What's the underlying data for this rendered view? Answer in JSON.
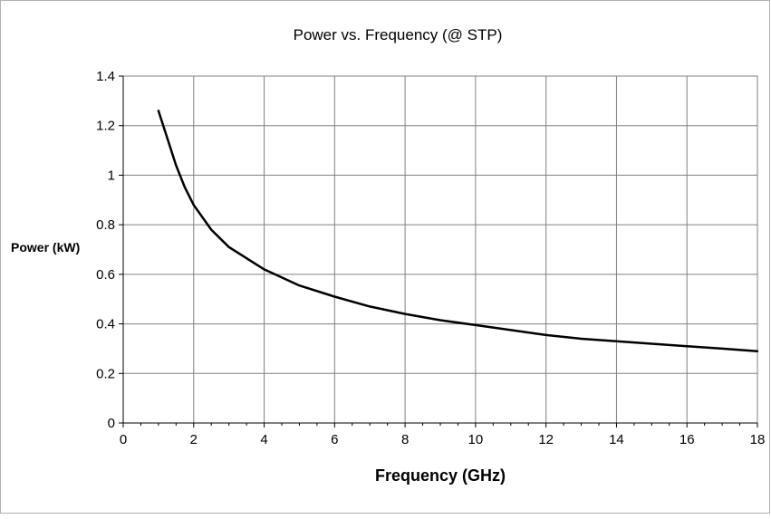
{
  "chart_data": {
    "type": "line",
    "title": "Power vs. Frequency (@ STP)",
    "xlabel": "Frequency (GHz)",
    "ylabel": "Power (kW)",
    "xlim": [
      0,
      18
    ],
    "ylim": [
      0,
      1.4
    ],
    "x_ticks": [
      0,
      2,
      4,
      6,
      8,
      10,
      12,
      14,
      16,
      18
    ],
    "y_ticks": [
      0,
      0.2,
      0.4,
      0.6,
      0.8,
      1,
      1.2,
      1.4
    ],
    "x_tick_labels": [
      "0",
      "2",
      "4",
      "6",
      "8",
      "10",
      "12",
      "14",
      "16",
      "18"
    ],
    "y_tick_labels": [
      "0",
      "0.2",
      "0.4",
      "0.6",
      "0.8",
      "1",
      "1.2",
      "1.4"
    ],
    "grid": true,
    "line_color": "#000000",
    "grid_color": "#808080",
    "series": [
      {
        "x": [
          1,
          1.25,
          1.5,
          1.75,
          2,
          2.5,
          3,
          4,
          5,
          6,
          7,
          8,
          9,
          10,
          11,
          12,
          13,
          14,
          15,
          16,
          17,
          18
        ],
        "values": [
          1.26,
          1.15,
          1.04,
          0.95,
          0.88,
          0.78,
          0.71,
          0.62,
          0.555,
          0.51,
          0.47,
          0.44,
          0.415,
          0.395,
          0.375,
          0.355,
          0.34,
          0.33,
          0.32,
          0.31,
          0.3,
          0.29
        ]
      }
    ]
  }
}
